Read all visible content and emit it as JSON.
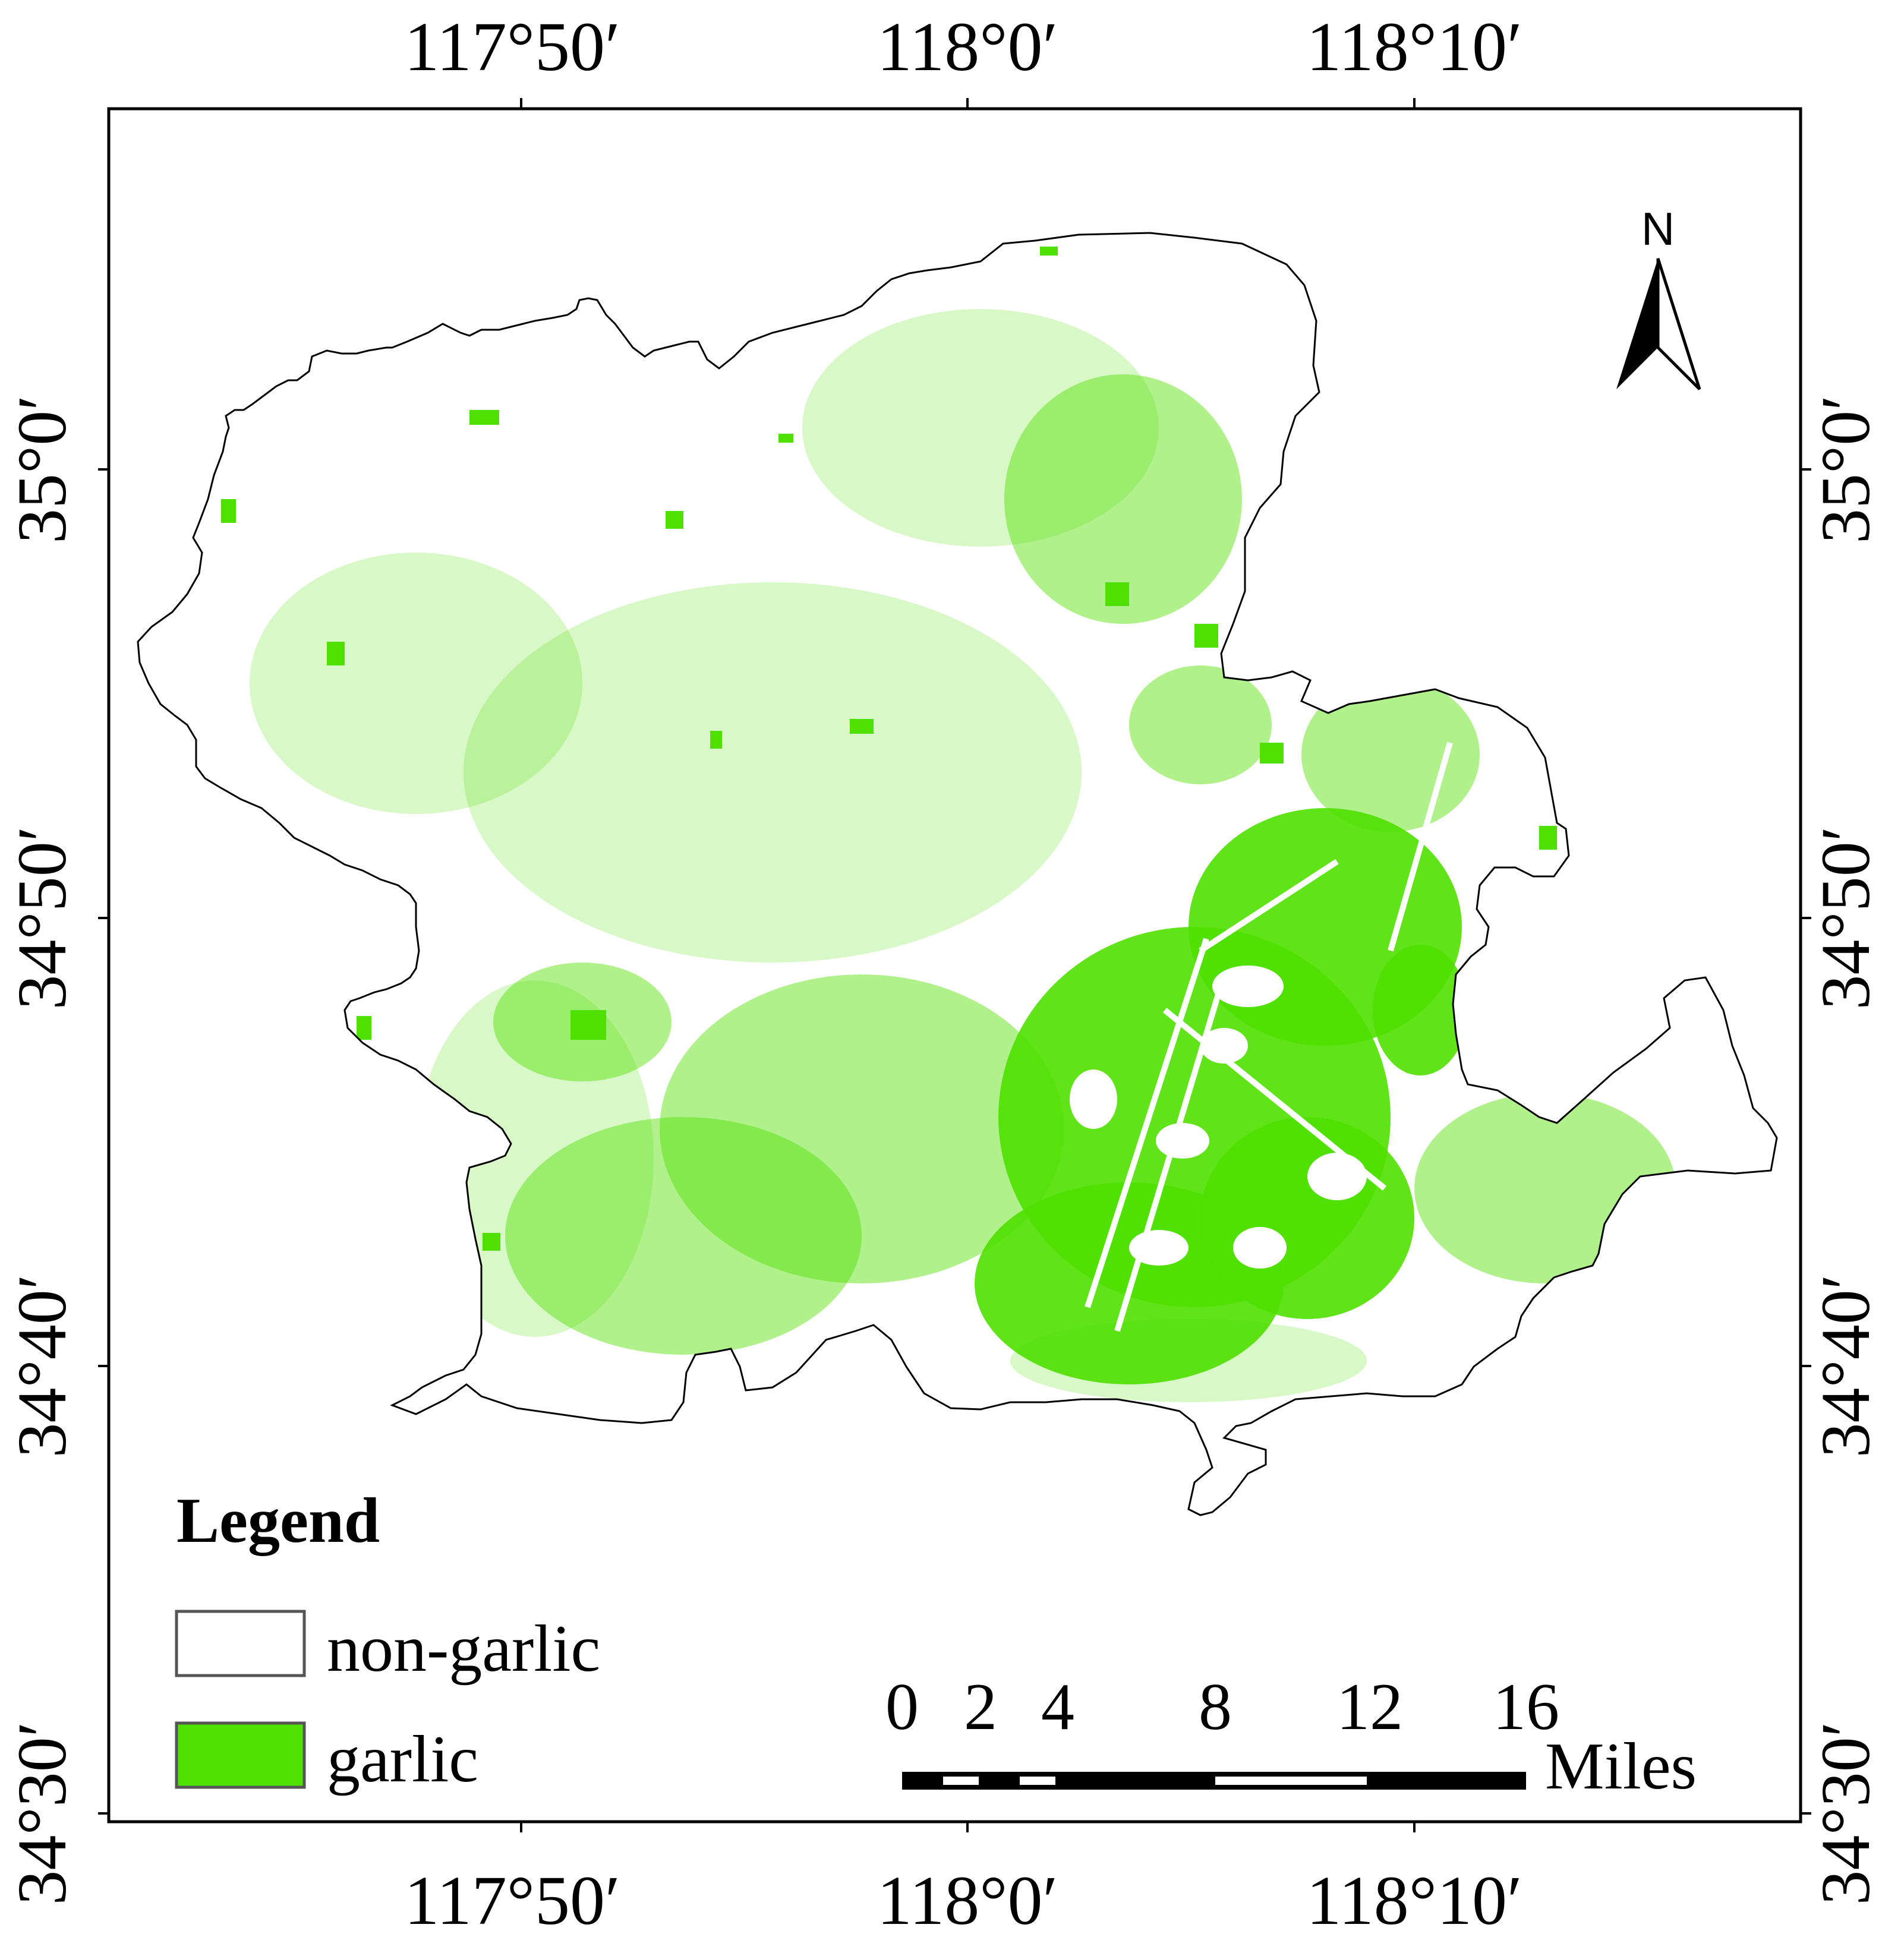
{
  "map": {
    "top_ticks": [
      "117°50′",
      "118°0′",
      "118°10′"
    ],
    "bottom_ticks": [
      "117°50′",
      "118°0′",
      "118°10′"
    ],
    "left_ticks": [
      "35°0′",
      "34°50′",
      "34°40′",
      "34°30′"
    ],
    "right_ticks": [
      "35°0′",
      "34°50′",
      "34°40′",
      "34°30′"
    ],
    "north_label": "N",
    "colors": {
      "garlic": "#4fe000",
      "non_garlic": "#ffffff",
      "frame": "#000000"
    }
  },
  "legend": {
    "title": "Legend",
    "items": [
      {
        "label": "non-garlic",
        "color": "#ffffff"
      },
      {
        "label": "garlic",
        "color": "#4fe000"
      }
    ]
  },
  "scale_bar": {
    "labels": [
      "0",
      "2",
      "4",
      "8",
      "12",
      "16"
    ],
    "unit": "Miles"
  }
}
